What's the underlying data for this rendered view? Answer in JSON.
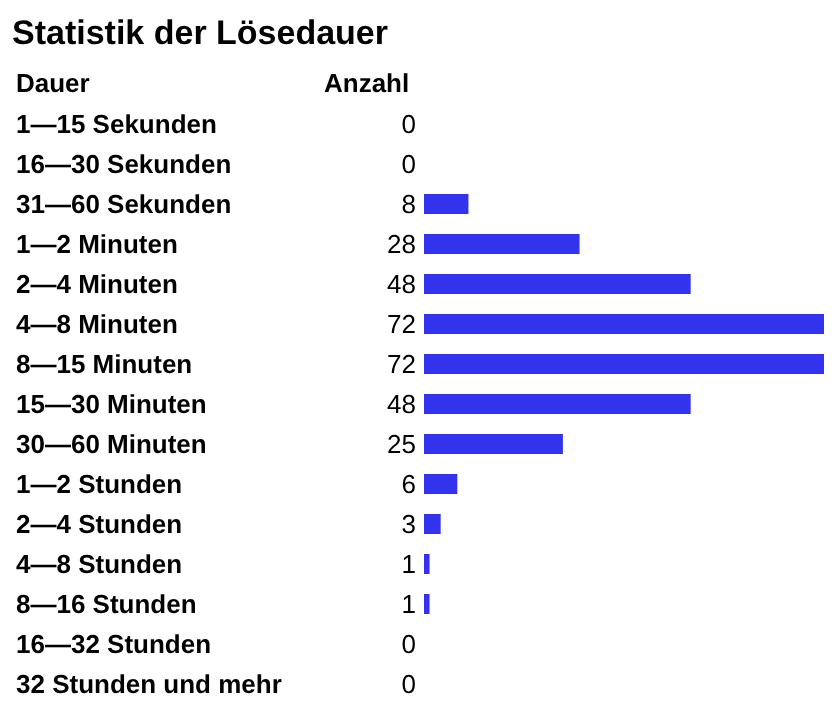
{
  "chart_data": {
    "type": "bar",
    "orientation": "horizontal",
    "title": "Statistik der Lösedauer",
    "ylabel": "Dauer",
    "xlabel": "Anzahl",
    "categories": [
      "1—15 Sekunden",
      "16—30 Sekunden",
      "31—60 Sekunden",
      "1—2 Minuten",
      "2—4 Minuten",
      "4—8 Minuten",
      "8—15 Minuten",
      "15—30 Minuten",
      "30—60 Minuten",
      "1—2 Stunden",
      "2—4 Stunden",
      "4—8 Stunden",
      "8—16 Stunden",
      "16—32 Stunden",
      "32 Stunden und mehr"
    ],
    "values": [
      0,
      0,
      8,
      28,
      48,
      72,
      72,
      48,
      25,
      6,
      3,
      1,
      1,
      0,
      0
    ],
    "color": "#3333ee",
    "xlim": [
      0,
      72
    ],
    "data_labels": true,
    "tick_labels": "y"
  }
}
